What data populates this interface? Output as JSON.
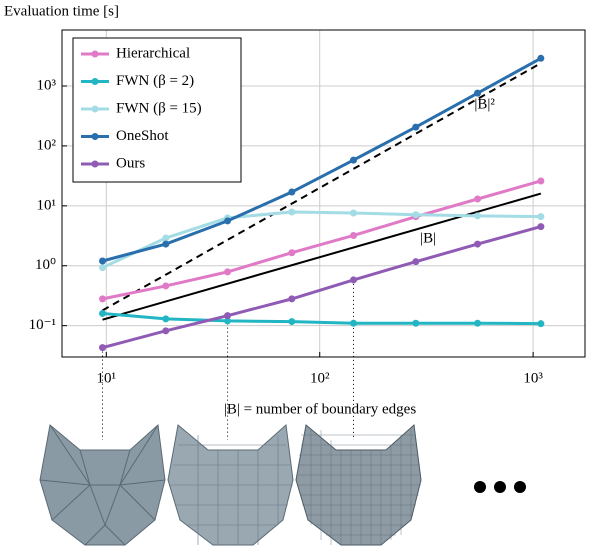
{
  "chart_data": {
    "type": "line",
    "y_label": "Evaluation time [s]",
    "x_label": "|B| = number of boundary edges",
    "xscale": "log",
    "yscale": "log",
    "grid": true,
    "legend": "upper left",
    "xlim": [
      6.2,
      1750
    ],
    "ylim": [
      0.03,
      8600
    ],
    "xticks": [
      {
        "value": 10,
        "label": "10¹"
      },
      {
        "value": 100,
        "label": "10²"
      },
      {
        "value": 1000,
        "label": "10³"
      }
    ],
    "yticks": [
      {
        "value": 0.1,
        "label": "10⁻¹"
      },
      {
        "value": 1,
        "label": "10⁰"
      },
      {
        "value": 10,
        "label": "10¹"
      },
      {
        "value": 100,
        "label": "10²"
      },
      {
        "value": 1000,
        "label": "10³"
      }
    ],
    "x": [
      9.6,
      19,
      37,
      74,
      144,
      282,
      549,
      1087
    ],
    "series": [
      {
        "name": "Hierarchical",
        "color": "#e07ac6",
        "values": [
          0.28,
          0.46,
          0.79,
          1.65,
          3.2,
          6.6,
          13,
          26
        ]
      },
      {
        "name": "FWN (β = 2)",
        "color": "#22b6c4",
        "values": [
          0.16,
          0.13,
          0.12,
          0.117,
          0.11,
          0.11,
          0.11,
          0.108
        ]
      },
      {
        "name": "FWN (β = 15)",
        "color": "#a3dce5",
        "values": [
          0.93,
          2.9,
          6.3,
          7.9,
          7.6,
          7.1,
          6.8,
          6.6
        ]
      },
      {
        "name": "OneShot",
        "color": "#2a6fad",
        "values": [
          1.2,
          2.3,
          5.6,
          17,
          58,
          206,
          760,
          2900
        ]
      },
      {
        "name": "Ours",
        "color": "#8f5bb5",
        "values": [
          0.043,
          0.082,
          0.147,
          0.28,
          0.58,
          1.17,
          2.3,
          4.5
        ]
      }
    ],
    "reference_lines": [
      {
        "label": "|B|²",
        "style": "dashed",
        "x": [
          9.6,
          1087
        ],
        "values": [
          0.18,
          2400
        ]
      },
      {
        "label": "|B|",
        "style": "solid",
        "x": [
          9.6,
          1087
        ],
        "values": [
          0.126,
          16
        ]
      }
    ]
  }
}
